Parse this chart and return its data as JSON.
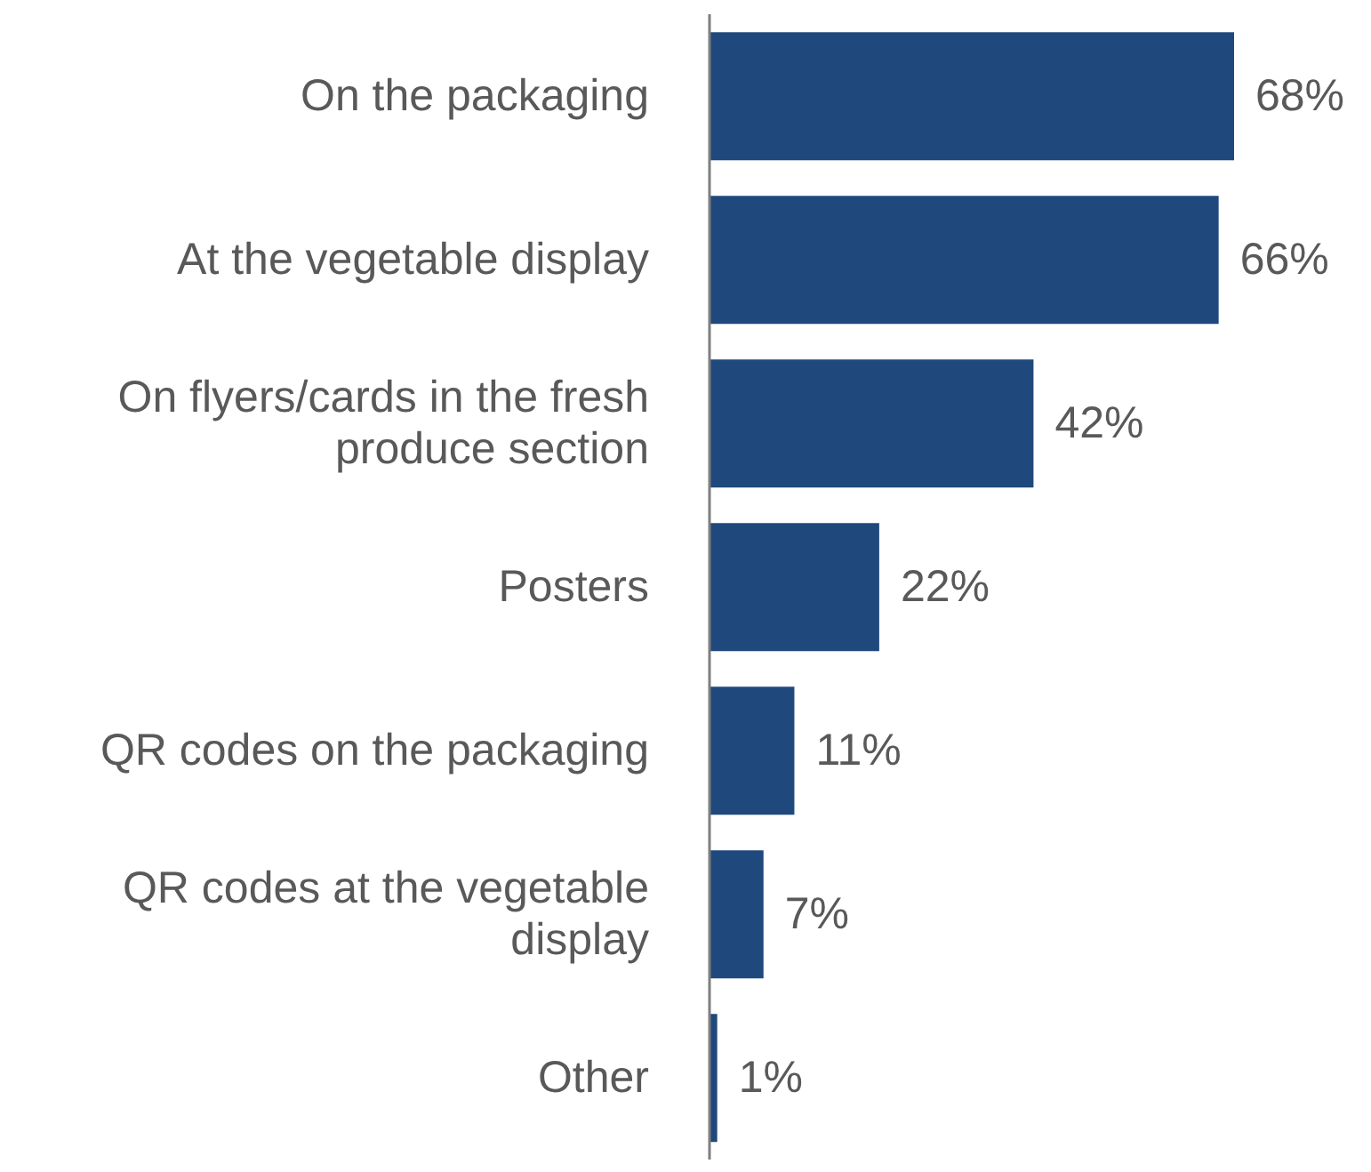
{
  "chart_data": {
    "type": "bar",
    "orientation": "horizontal",
    "categories": [
      "On the packaging",
      "At the vegetable display",
      "On flyers/cards in the fresh produce section",
      "Posters",
      "QR codes on the packaging",
      "QR codes at the vegetable display",
      "Other"
    ],
    "values": [
      68,
      66,
      42,
      22,
      11,
      7,
      1
    ],
    "value_labels": [
      "68%",
      "66%",
      "42%",
      "22%",
      "11%",
      "7%",
      "1%"
    ],
    "color": "#1f497d"
  }
}
